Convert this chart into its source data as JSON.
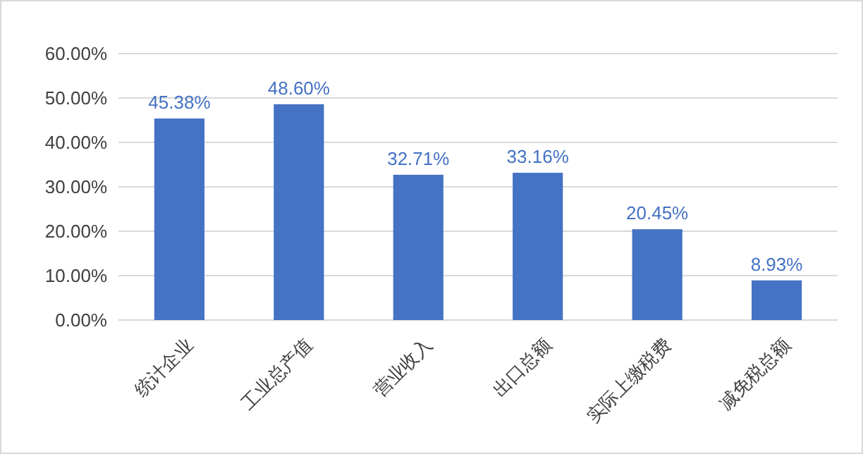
{
  "chart_data": {
    "type": "bar",
    "categories": [
      "统计企业",
      "工业总产值",
      "营业收入",
      "出口总额",
      "实际上缴税费",
      "减免税总额"
    ],
    "values": [
      45.38,
      48.6,
      32.71,
      33.16,
      20.45,
      8.93
    ],
    "value_labels": [
      "45.38%",
      "48.60%",
      "32.71%",
      "33.16%",
      "20.45%",
      "8.93%"
    ],
    "color": "#4472c4",
    "ylim": [
      0,
      60
    ],
    "yticks": [
      {
        "value": 0,
        "label": "0.00%"
      },
      {
        "value": 10,
        "label": "10.00%"
      },
      {
        "value": 20,
        "label": "20.00%"
      },
      {
        "value": 30,
        "label": "30.00%"
      },
      {
        "value": 40,
        "label": "40.00%"
      },
      {
        "value": 50,
        "label": "50.00%"
      },
      {
        "value": 60,
        "label": "60.00%"
      }
    ],
    "grid": "y"
  }
}
